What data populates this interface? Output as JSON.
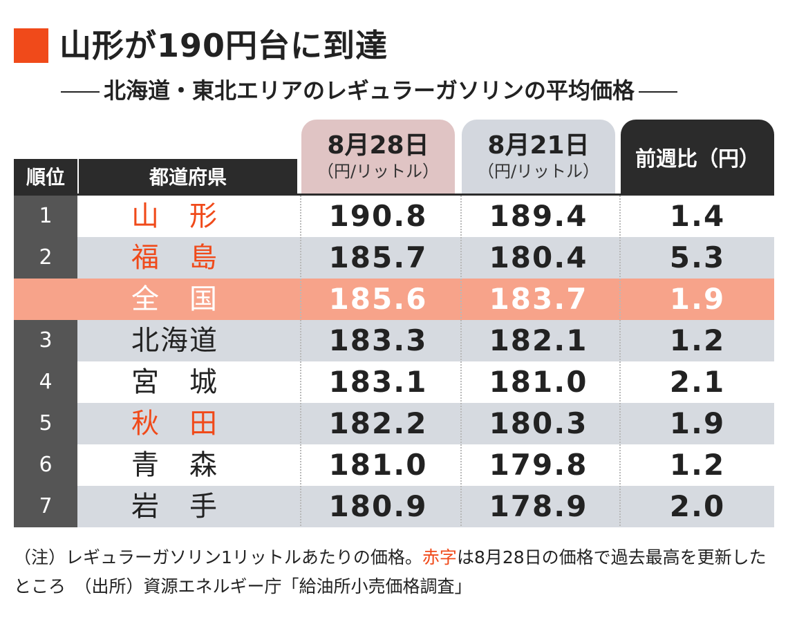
{
  "title": "山形が190円台に到達",
  "subtitle": "北海道・東北エリアのレギュラーガソリンの平均価格",
  "colors": {
    "accent": "#f04a1a",
    "dark": "#2b2b2b",
    "row_odd": "#ffffff",
    "row_even": "#d6dae0",
    "highlight_row": "#f7a38a",
    "header_aug28": "#e0c4c4",
    "header_aug21": "#d3d7de",
    "rank_cell": "#555555"
  },
  "chart_data": {
    "type": "table",
    "columns": {
      "rank": "順位",
      "prefecture": "都道府県",
      "aug28_date": "8月28日",
      "aug28_unit": "（円/リットル）",
      "aug21_date": "8月21日",
      "aug21_unit": "（円/リットル）",
      "weekly_change": "前週比（円）"
    },
    "rows": [
      {
        "rank": "1",
        "prefecture": "山　形",
        "aug28": "190.8",
        "aug21": "189.4",
        "change": "1.4",
        "record_high": true
      },
      {
        "rank": "2",
        "prefecture": "福　島",
        "aug28": "185.7",
        "aug21": "180.4",
        "change": "5.3",
        "record_high": true
      },
      {
        "rank": "",
        "prefecture": "全　国",
        "aug28": "185.6",
        "aug21": "183.7",
        "change": "1.9",
        "national": true
      },
      {
        "rank": "3",
        "prefecture": "北海道",
        "aug28": "183.3",
        "aug21": "182.1",
        "change": "1.2"
      },
      {
        "rank": "4",
        "prefecture": "宮　城",
        "aug28": "183.1",
        "aug21": "181.0",
        "change": "2.1"
      },
      {
        "rank": "5",
        "prefecture": "秋　田",
        "aug28": "182.2",
        "aug21": "180.3",
        "change": "1.9",
        "record_high": true
      },
      {
        "rank": "6",
        "prefecture": "青　森",
        "aug28": "181.0",
        "aug21": "179.8",
        "change": "1.2"
      },
      {
        "rank": "7",
        "prefecture": "岩　手",
        "aug28": "180.9",
        "aug21": "178.9",
        "change": "2.0"
      }
    ]
  },
  "note": {
    "part1": "（注）レギュラーガソリン1リットルあたりの価格。",
    "red": "赤字",
    "part2": "は8月28日の価格で過去最高を更新したところ",
    "source": "（出所）資源エネルギー庁「給油所小売価格調査」"
  }
}
